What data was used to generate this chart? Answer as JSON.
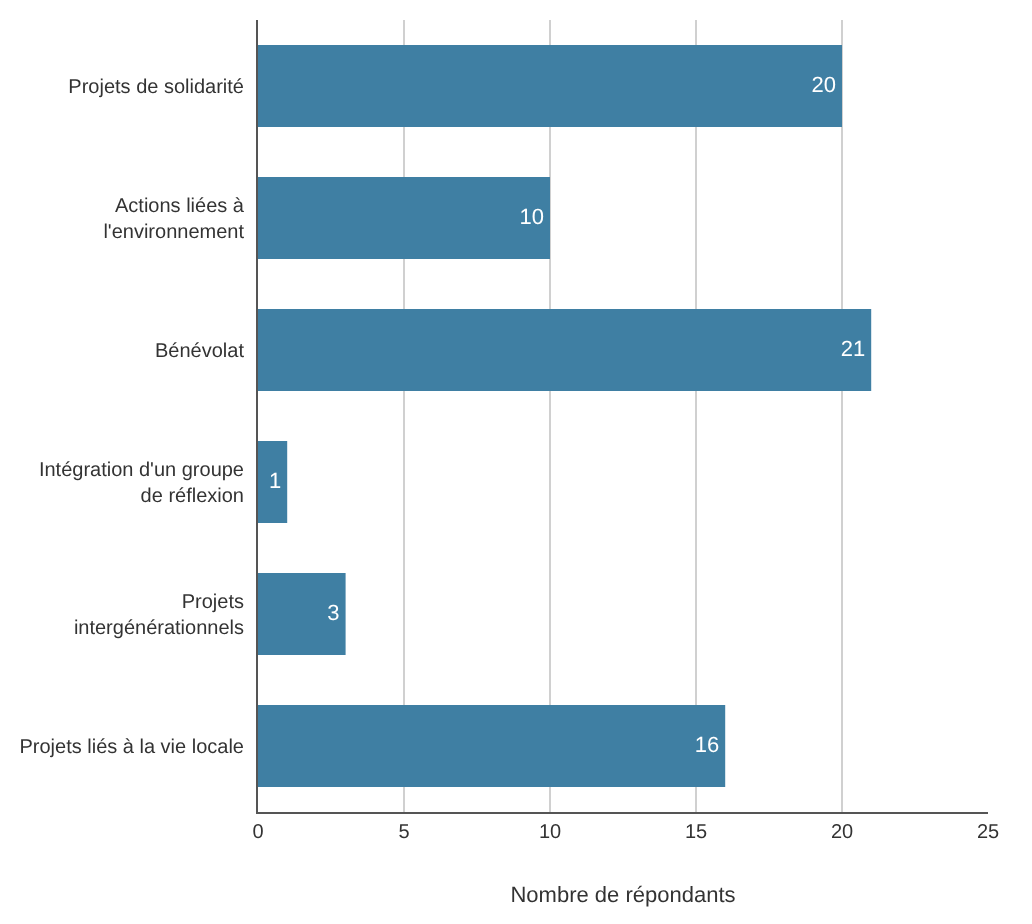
{
  "chart_data": {
    "type": "bar",
    "orientation": "horizontal",
    "categories": [
      "Projets de solidarité",
      "Actions liées à\nl'environnement",
      "Bénévolat",
      "Intégration d'un groupe\nde réflexion",
      "Projets\nintergénérationnels",
      "Projets liés à la vie locale"
    ],
    "values": [
      20,
      10,
      21,
      1,
      3,
      16
    ],
    "color": "#3f7fa3",
    "xlabel": "Nombre de répondants",
    "xlim": [
      0,
      25
    ],
    "xticks": [
      0,
      5,
      10,
      15,
      20,
      25
    ],
    "grid": "x",
    "data_labels": true
  }
}
